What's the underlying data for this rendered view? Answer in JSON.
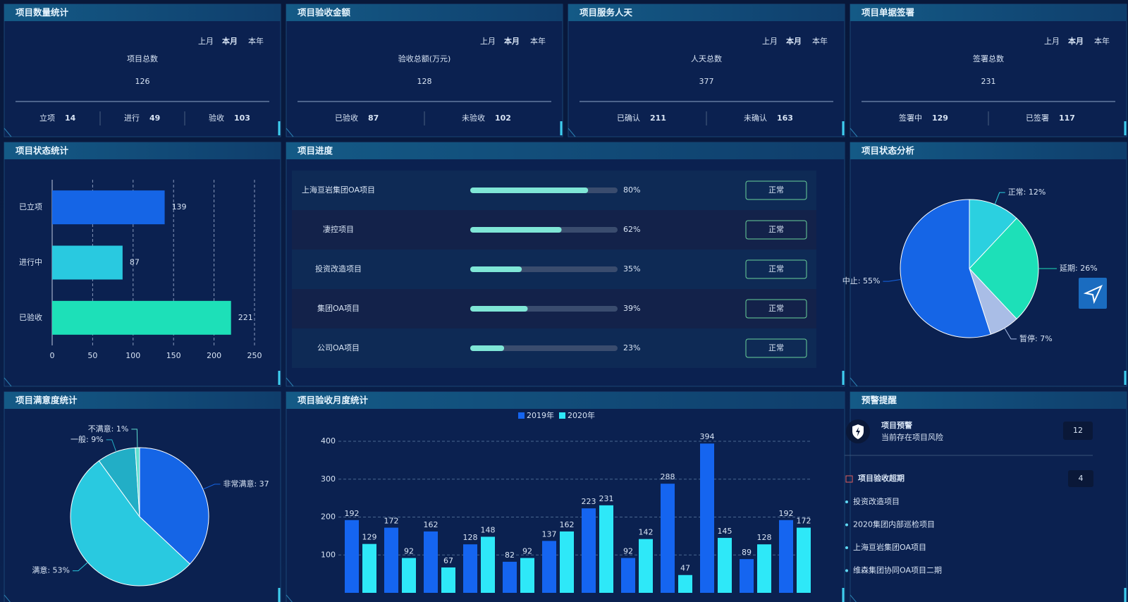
{
  "stat_cards": [
    {
      "title": "项目数量统计",
      "periods": [
        "上月",
        "本月",
        "本年"
      ],
      "total_label": "项目总数",
      "total": 126,
      "items": [
        {
          "label": "立项",
          "value": 14
        },
        {
          "label": "进行",
          "value": 49
        },
        {
          "label": "验收",
          "value": 103
        }
      ]
    },
    {
      "title": "项目验收金额",
      "periods": [
        "上月",
        "本月",
        "本年"
      ],
      "total_label": "验收总额(万元)",
      "total": 128,
      "items": [
        {
          "label": "已验收",
          "value": 87
        },
        {
          "label": "未验收",
          "value": 102
        }
      ]
    },
    {
      "title": "项目服务人天",
      "periods": [
        "上月",
        "本月",
        "本年"
      ],
      "total_label": "人天总数",
      "total": 377,
      "items": [
        {
          "label": "已确认",
          "value": 211
        },
        {
          "label": "未确认",
          "value": 163
        }
      ]
    },
    {
      "title": "项目单据签署",
      "periods": [
        "上月",
        "本月",
        "本年"
      ],
      "total_label": "签署总数",
      "total": 231,
      "items": [
        {
          "label": "签署中",
          "value": 129
        },
        {
          "label": "已签署",
          "value": 117
        }
      ]
    }
  ],
  "chart_data": [
    {
      "type": "hbar",
      "title": "项目状态统计",
      "categories": [
        "已立项",
        "进行中",
        "已验收"
      ],
      "values": [
        139,
        87,
        221
      ],
      "colors": [
        "#1565e6",
        "#29c9e0",
        "#1de0b8"
      ],
      "xlim": [
        0,
        250
      ],
      "xticks": [
        0,
        50,
        100,
        150,
        200,
        250
      ],
      "grid": true
    },
    {
      "type": "pie",
      "title": "项目状态分析",
      "values": [
        12,
        26,
        7,
        55
      ],
      "value_labels": [
        "正常: 12%",
        "延期: 26%",
        "暂停: 7%",
        "中止: 55%"
      ],
      "colors": [
        "#2bd0e0",
        "#1de0b8",
        "#a9bde6",
        "#1565e6"
      ]
    },
    {
      "type": "pie",
      "title": "项目满意度统计",
      "values": [
        37,
        53,
        9,
        1
      ],
      "value_labels": [
        "非常满意: 37",
        "满意: 53%",
        "一般: 9%",
        "不满意: 1%"
      ],
      "colors": [
        "#1565e6",
        "#29c9e0",
        "#22aec6",
        "#5fe0d0"
      ]
    },
    {
      "type": "bar",
      "title": "项目验收月度统计",
      "categories": [
        null,
        null,
        null,
        null,
        null,
        null,
        null,
        null,
        null,
        null,
        null,
        null
      ],
      "series": [
        {
          "name": "2019年",
          "color": "#1565f0",
          "values": [
            192,
            172,
            162,
            128,
            82,
            137,
            223,
            92,
            288,
            394,
            89,
            192
          ]
        },
        {
          "name": "2020年",
          "color": "#2ee8f8",
          "values": [
            129,
            92,
            67,
            148,
            92,
            162,
            231,
            142,
            47,
            145,
            128,
            172
          ]
        }
      ],
      "ylim": [
        0,
        400
      ],
      "yticks": [
        100,
        200,
        300,
        400
      ],
      "grid": true
    }
  ],
  "progress": {
    "title": "项目进度",
    "rows": [
      {
        "name": "上海亘岩集团OA项目",
        "value": 80,
        "value_label": "80%",
        "status": "正常"
      },
      {
        "name": "凄控项目",
        "value": 62,
        "value_label": "62%",
        "status": "正常"
      },
      {
        "name": "投资改造项目",
        "value": 35,
        "value_label": "35%",
        "status": "正常"
      },
      {
        "name": "集团OA项目",
        "value": 39,
        "value_label": "39%",
        "status": "正常"
      },
      {
        "name": "公司OA项目",
        "value": 23,
        "value_label": "23%",
        "status": "正常"
      }
    ]
  },
  "alerts": {
    "title": "预警提醒",
    "warning": {
      "title": "项目预警",
      "subtitle": "当前存在项目风险",
      "count": 12
    },
    "overdue": {
      "title": "项目验收超期",
      "count": 4,
      "items": [
        "投资改造项目",
        "2020集团内部巡检项目",
        "上海亘岩集团OA项目",
        "维森集团协同OA项目二期"
      ]
    }
  }
}
